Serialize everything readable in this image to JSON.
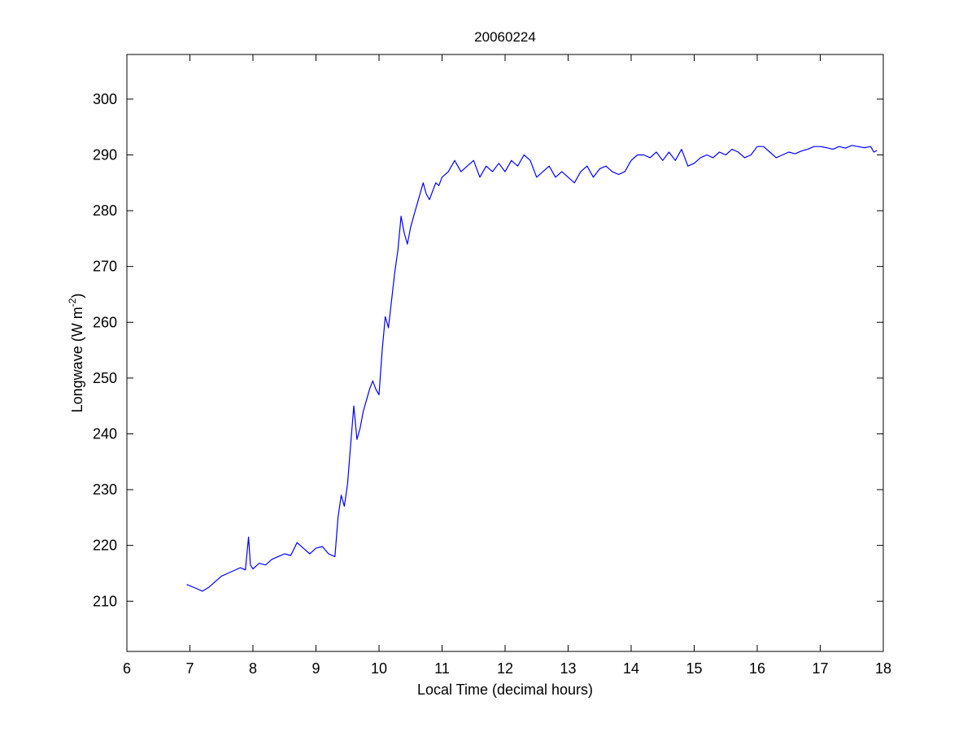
{
  "colors": {
    "background": "#ffffff",
    "axes": "#000000",
    "line": "#0000ff"
  },
  "chart_data": {
    "type": "line",
    "title": "20060224",
    "xlabel": "Local Time (decimal hours)",
    "ylabel": {
      "main": "Longwave (W m",
      "superscript": "-2",
      "close": ")"
    },
    "xlim": [
      6,
      18
    ],
    "ylim": [
      201,
      308
    ],
    "xticks": [
      6,
      7,
      8,
      9,
      10,
      11,
      12,
      13,
      14,
      15,
      16,
      17,
      18
    ],
    "yticks": [
      210,
      220,
      230,
      240,
      250,
      260,
      270,
      280,
      290,
      300
    ],
    "grid": false,
    "legend": "none",
    "series": [
      {
        "x": [
          6.95,
          7.1,
          7.2,
          7.3,
          7.4,
          7.5,
          7.6,
          7.7,
          7.8,
          7.88,
          7.93,
          7.96,
          8.0,
          8.1,
          8.2,
          8.3,
          8.4,
          8.5,
          8.6,
          8.7,
          8.8,
          8.9,
          9.0,
          9.1,
          9.2,
          9.3,
          9.35,
          9.4,
          9.45,
          9.5,
          9.55,
          9.6,
          9.65,
          9.7,
          9.75,
          9.8,
          9.85,
          9.9,
          9.95,
          10.0,
          10.05,
          10.1,
          10.15,
          10.2,
          10.25,
          10.3,
          10.35,
          10.4,
          10.45,
          10.5,
          10.55,
          10.6,
          10.65,
          10.7,
          10.75,
          10.8,
          10.85,
          10.9,
          10.95,
          11.0,
          11.1,
          11.2,
          11.3,
          11.4,
          11.5,
          11.6,
          11.7,
          11.8,
          11.9,
          12.0,
          12.1,
          12.2,
          12.3,
          12.4,
          12.5,
          12.6,
          12.7,
          12.8,
          12.9,
          13.0,
          13.1,
          13.2,
          13.3,
          13.4,
          13.5,
          13.6,
          13.7,
          13.8,
          13.9,
          14.0,
          14.1,
          14.2,
          14.3,
          14.4,
          14.5,
          14.6,
          14.7,
          14.8,
          14.9,
          15.0,
          15.1,
          15.2,
          15.3,
          15.4,
          15.5,
          15.6,
          15.7,
          15.8,
          15.9,
          16.0,
          16.1,
          16.2,
          16.3,
          16.4,
          16.5,
          16.6,
          16.7,
          16.8,
          16.9,
          17.0,
          17.1,
          17.2,
          17.3,
          17.4,
          17.5,
          17.6,
          17.7,
          17.8,
          17.85,
          17.9
        ],
        "y": [
          213,
          212.3,
          211.8,
          212.5,
          213.5,
          214.5,
          215,
          215.5,
          216,
          215.6,
          221.5,
          216.5,
          215.8,
          216.8,
          216.5,
          217.5,
          218,
          218.5,
          218.2,
          220.5,
          219.5,
          218.5,
          219.5,
          219.8,
          218.5,
          218,
          225,
          229,
          227,
          231,
          238,
          245,
          239,
          241,
          244,
          246,
          248,
          249.5,
          248,
          247,
          255,
          261,
          259,
          264,
          269,
          273,
          279,
          276,
          274,
          277,
          279,
          281,
          283,
          285,
          283,
          282,
          283.5,
          285,
          284.5,
          286,
          287,
          289,
          287,
          288,
          289,
          286,
          288,
          287,
          288.5,
          287,
          289,
          288,
          290,
          289,
          286,
          287,
          288,
          286,
          287,
          286,
          285,
          287,
          288,
          286,
          287.5,
          288,
          287,
          286.5,
          287,
          289,
          290,
          290,
          289.5,
          290.5,
          289,
          290.5,
          289,
          291,
          288,
          288.5,
          289.5,
          290,
          289.5,
          290.5,
          290,
          291,
          290.5,
          289.5,
          290,
          291.5,
          291.5,
          290.5,
          289.5,
          290,
          290.5,
          290.2,
          290.7,
          291,
          291.5,
          291.5,
          291.3,
          291,
          291.5,
          291.2,
          291.7,
          291.5,
          291.3,
          291.5,
          290.5,
          290.8
        ]
      }
    ]
  }
}
